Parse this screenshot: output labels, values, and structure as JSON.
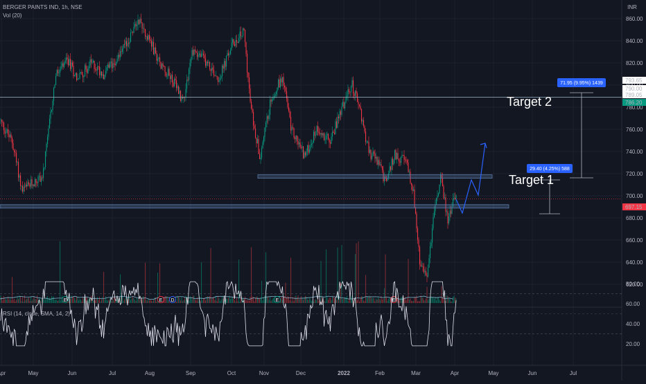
{
  "legend": {
    "symbol_line": "BERGER PAINTS IND, 1h, NSE",
    "volume_line": "Vol (20)",
    "rsi_line": "RSI (14, close, SMA, 14, 2)"
  },
  "currency": "INR",
  "price_axis": [
    "860.00",
    "840.00",
    "820.00",
    "800.00",
    "780.00",
    "760.00",
    "740.00",
    "720.00",
    "700.00",
    "680.00",
    "660.00",
    "640.00",
    "620.00"
  ],
  "rsi_axis": [
    "80.00",
    "60.00",
    "40.00",
    "20.00"
  ],
  "time_axis": [
    "Apr",
    "May",
    "Jun",
    "Jul",
    "Aug",
    "Sep",
    "Oct",
    "Nov",
    "Dec",
    "2022",
    "Feb",
    "Mar",
    "Apr",
    "May",
    "Jun",
    "Jul"
  ],
  "price_tags": [
    {
      "text": "793.65",
      "bg": "#ffffff",
      "fg": "#131722"
    },
    {
      "text": "790.00",
      "bg": "#ffffff",
      "fg": "#f23645"
    },
    {
      "text": "789.05",
      "bg": "#ffffff",
      "fg": "#131722"
    },
    {
      "text": "786.20",
      "bg": "#089981",
      "fg": "#ffffff"
    },
    {
      "text": "697.15",
      "bg": "#f23645",
      "fg": "#ffffff"
    }
  ],
  "measurements": [
    {
      "label": "71.95 (9.95%) 1439"
    },
    {
      "label": "29.40 (4.25%) 588"
    }
  ],
  "targets": [
    {
      "label": "Target 2"
    },
    {
      "label": "Target 1"
    }
  ],
  "event_markers": [
    "E",
    "E",
    "D",
    "E",
    "E"
  ],
  "colors": {
    "background": "#131722",
    "up": "#089981",
    "down": "#f23645",
    "rsi_line": "#e0e3eb",
    "projection": "#2962ff",
    "zone": "#5a7aa8",
    "target_line": "#9fb7c9"
  }
}
